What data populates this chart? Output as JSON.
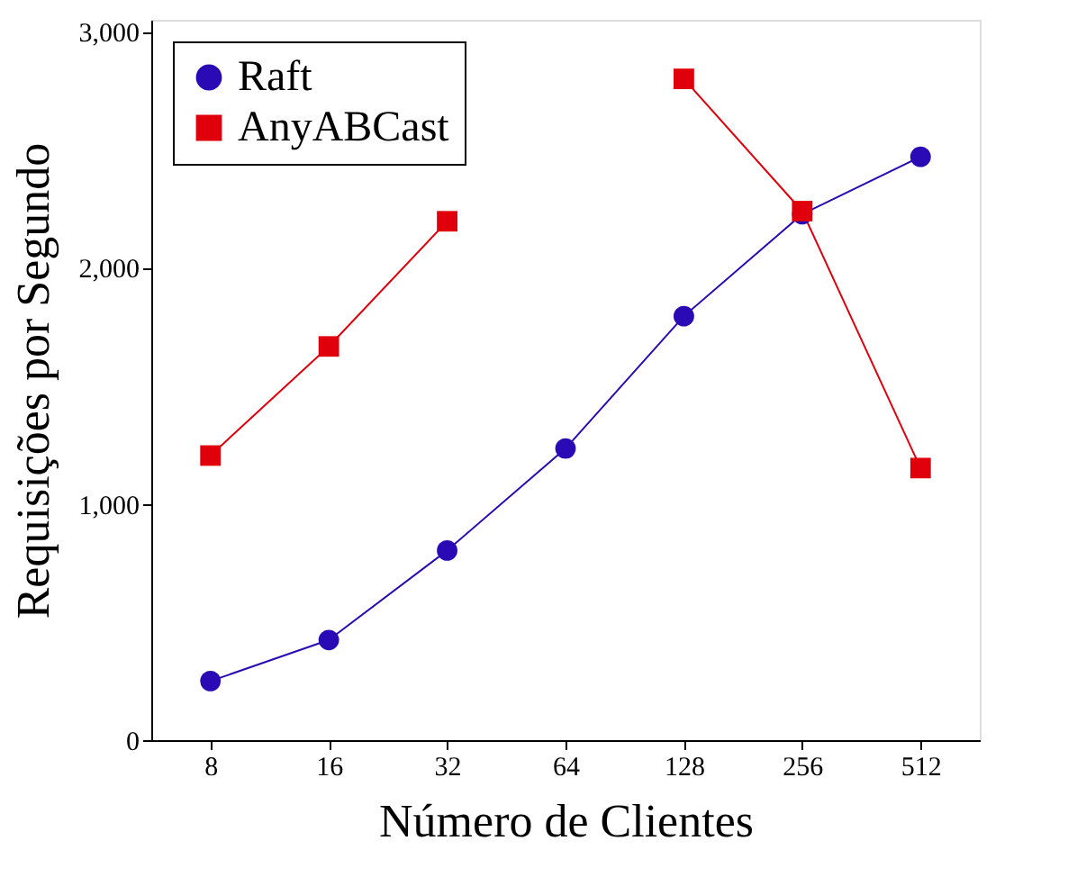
{
  "chart_data": {
    "type": "line",
    "xlabel": "Número de Clientes",
    "ylabel": "Requisições por Segundo",
    "categories": [
      "8",
      "16",
      "32",
      "64",
      "128",
      "256",
      "512"
    ],
    "series": [
      {
        "name": "Raft",
        "color": "#2a0ab4",
        "marker": "circle",
        "values": [
          250,
          424,
          803,
          1235,
          1795,
          2227,
          2470
        ]
      },
      {
        "name": "AnyABCast",
        "color": "#e0000c",
        "marker": "square",
        "values": [
          1205,
          1667,
          2197,
          null,
          2800,
          2240,
          1152
        ]
      }
    ],
    "ylim": [
      0,
      3050
    ],
    "yticks": [
      0,
      {
        "value": 1000,
        "label": "1,000"
      },
      {
        "value": 2000,
        "label": "2,000"
      },
      {
        "value": 3000,
        "label": "3,000"
      }
    ],
    "grid": false,
    "legend": "top left",
    "line_style": "solid"
  }
}
